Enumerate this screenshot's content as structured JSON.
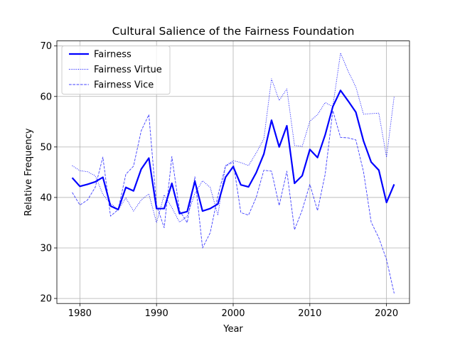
{
  "chart_data": {
    "type": "line",
    "title": "Cultural Salience of the Fairness Foundation",
    "xlabel": "Year",
    "ylabel": "Relative Frequency",
    "xlim": [
      1977,
      2023
    ],
    "ylim": [
      19,
      71
    ],
    "xticks": [
      1980,
      1990,
      2000,
      2010,
      2020
    ],
    "yticks": [
      20,
      30,
      40,
      50,
      60,
      70
    ],
    "grid": true,
    "legend_position": "top-left",
    "x": [
      1979,
      1980,
      1981,
      1982,
      1983,
      1984,
      1985,
      1986,
      1987,
      1988,
      1989,
      1990,
      1991,
      1992,
      1993,
      1994,
      1995,
      1996,
      1997,
      1998,
      1999,
      2000,
      2001,
      2002,
      2003,
      2004,
      2005,
      2006,
      2007,
      2008,
      2009,
      2010,
      2011,
      2012,
      2013,
      2014,
      2015,
      2016,
      2017,
      2018,
      2019,
      2020,
      2021
    ],
    "series": [
      {
        "name": "Fairness",
        "color": "#0000ff",
        "style": "solid",
        "values": [
          43.9,
          42.2,
          42.6,
          43.1,
          44.0,
          38.3,
          37.6,
          42.0,
          41.3,
          45.6,
          47.8,
          37.8,
          37.8,
          42.8,
          36.8,
          37.2,
          43.2,
          37.3,
          37.8,
          38.7,
          44.0,
          46.1,
          42.5,
          42.1,
          44.9,
          48.6,
          55.3,
          50.0,
          54.2,
          42.8,
          44.3,
          49.5,
          47.9,
          52.4,
          58.0,
          61.2,
          59.1,
          56.9,
          51.2,
          47.0,
          45.4,
          39.0,
          42.6
        ]
      },
      {
        "name": "Fairness Virtue",
        "color": "#0000ff",
        "style": "dotted",
        "values": [
          46.3,
          45.3,
          45.1,
          44.3,
          40.6,
          38.8,
          37.6,
          39.9,
          37.3,
          39.5,
          40.7,
          35.0,
          40.5,
          38.0,
          35.1,
          36.3,
          40.8,
          43.3,
          42.0,
          36.5,
          46.3,
          47.3,
          46.9,
          46.3,
          48.8,
          51.6,
          63.5,
          59.2,
          61.5,
          50.3,
          50.1,
          55.1,
          56.4,
          58.8,
          58.0,
          68.6,
          65.0,
          61.9,
          56.5,
          56.6,
          56.7,
          48.0,
          60.0
        ]
      },
      {
        "name": "Fairness Vice",
        "color": "#0000ff",
        "style": "dashed",
        "values": [
          41.0,
          38.5,
          39.5,
          42.0,
          48.0,
          36.3,
          37.6,
          44.6,
          46.2,
          53.2,
          56.4,
          38.5,
          34.0,
          48.1,
          37.4,
          35.0,
          44.1,
          30.0,
          33.0,
          40.3,
          46.2,
          47.0,
          37.0,
          36.5,
          40.0,
          45.4,
          45.2,
          38.4,
          45.2,
          33.6,
          37.5,
          42.6,
          37.4,
          44.6,
          57.2,
          51.9,
          51.8,
          51.4,
          45.1,
          35.1,
          32.0,
          27.7,
          21.0
        ]
      }
    ]
  }
}
